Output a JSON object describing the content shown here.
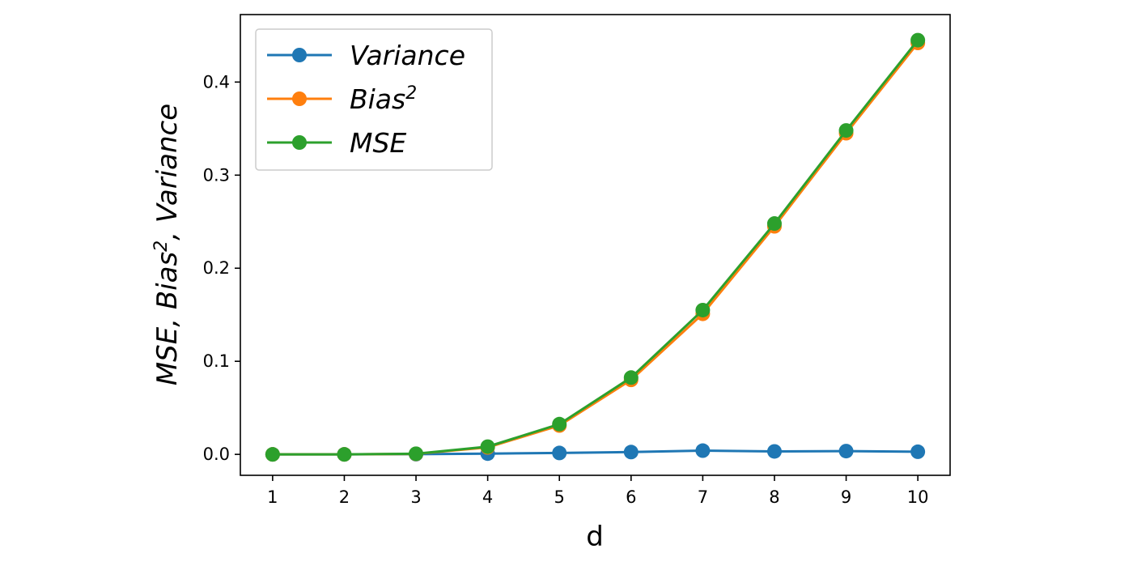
{
  "chart_data": {
    "type": "line",
    "x": [
      1,
      2,
      3,
      4,
      5,
      6,
      7,
      8,
      9,
      10
    ],
    "series": [
      {
        "name": "Variance",
        "color": "#1f77b4",
        "values": [
          0.0,
          0.0,
          0.0002,
          0.0008,
          0.0015,
          0.0025,
          0.004,
          0.0032,
          0.0035,
          0.0028
        ]
      },
      {
        "name": "Bias",
        "name_sup": "2",
        "color": "#ff7f0e",
        "values": [
          0.0,
          0.0,
          0.0005,
          0.0075,
          0.031,
          0.08,
          0.151,
          0.245,
          0.345,
          0.442
        ]
      },
      {
        "name": "MSE",
        "color": "#2ca02c",
        "values": [
          0.0,
          0.0,
          0.0007,
          0.0083,
          0.0325,
          0.0825,
          0.155,
          0.248,
          0.348,
          0.445
        ]
      }
    ],
    "xlabel": "d",
    "ylabel": {
      "pre": "MSE, Bias",
      "sup": "2",
      "post": ", Variance"
    },
    "xticks": [
      1,
      2,
      3,
      4,
      5,
      6,
      7,
      8,
      9,
      10
    ],
    "yticks": [
      0.0,
      0.1,
      0.2,
      0.3,
      0.4
    ],
    "ytick_labels": [
      "0.0",
      "0.1",
      "0.2",
      "0.3",
      "0.4"
    ],
    "xlim": [
      0.55,
      10.45
    ],
    "ylim": [
      -0.0225,
      0.4725
    ],
    "grid": false,
    "legend_position": "top-left"
  }
}
